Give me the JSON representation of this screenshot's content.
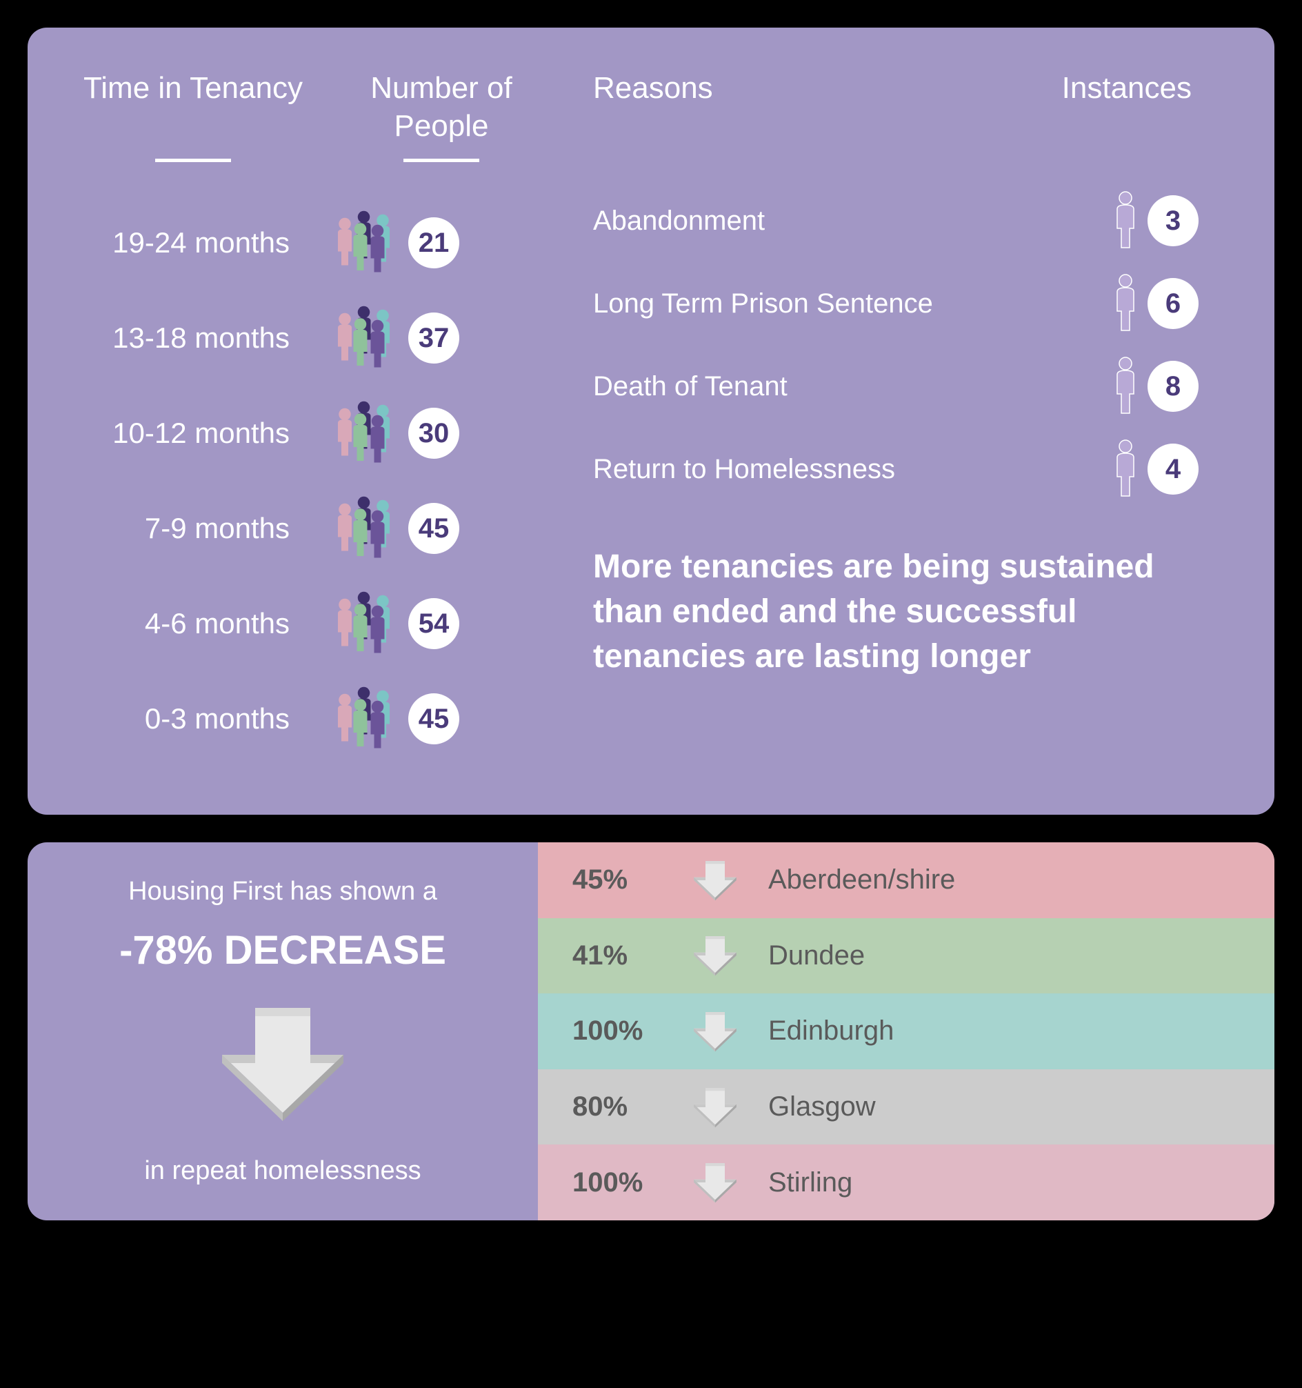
{
  "colors": {
    "panel_bg": "#a297c5",
    "text_white": "#ffffff",
    "circle_bg": "#ffffff",
    "circle_text": "#4a3b7a",
    "city_text": "#5a5a5a",
    "arrow_top": "#e8e8e8",
    "arrow_side": "#bfbfbf",
    "people_colors": [
      "#3d2f6b",
      "#7cc5c5",
      "#d9a8b8",
      "#8fc29b",
      "#6b5499"
    ]
  },
  "top_panel": {
    "headers": {
      "tenancy": "Time in Tenancy",
      "people": "Number of People",
      "reasons": "Reasons",
      "instances": "Instances"
    },
    "tenancy_rows": [
      {
        "label": "19-24 months",
        "count": 21
      },
      {
        "label": "13-18 months",
        "count": 37
      },
      {
        "label": "10-12 months",
        "count": 30
      },
      {
        "label": "7-9 months",
        "count": 45
      },
      {
        "label": "4-6 months",
        "count": 54
      },
      {
        "label": "0-3 months",
        "count": 45
      }
    ],
    "reasons": [
      {
        "label": "Abandonment",
        "count": 3
      },
      {
        "label": "Long Term Prison Sentence",
        "count": 6
      },
      {
        "label": "Death of Tenant",
        "count": 8
      },
      {
        "label": "Return to Homelessness",
        "count": 4
      }
    ],
    "summary": "More tenancies are being sustained than ended and the successful tenancies are lasting longer"
  },
  "bottom_panel": {
    "line1": "Housing First has shown a",
    "big": "-78% DECREASE",
    "line2": "in repeat homelessness",
    "cities": [
      {
        "pct": "45%",
        "name": "Aberdeen/shire",
        "bg": "#e5afb6"
      },
      {
        "pct": "41%",
        "name": "Dundee",
        "bg": "#b6d0b2"
      },
      {
        "pct": "100%",
        "name": "Edinburgh",
        "bg": "#a6d4cf"
      },
      {
        "pct": "80%",
        "name": "Glasgow",
        "bg": "#cccccc"
      },
      {
        "pct": "100%",
        "name": "Stirling",
        "bg": "#e0b9c5"
      }
    ]
  }
}
